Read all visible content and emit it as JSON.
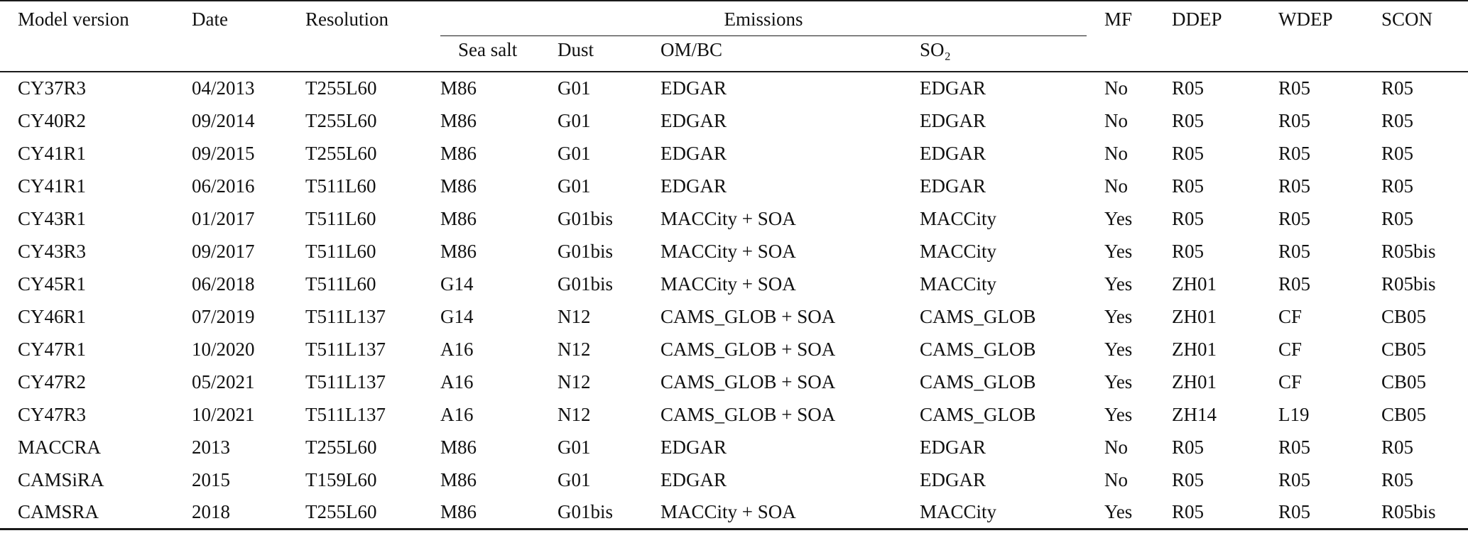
{
  "table": {
    "header": {
      "model_version": "Model version",
      "date": "Date",
      "resolution": "Resolution",
      "emissions_group": "Emissions",
      "sea_salt": "Sea salt",
      "dust": "Dust",
      "om_bc": "OM/BC",
      "so2": "SO₂",
      "mf": "MF",
      "ddep": "DDEP",
      "wdep": "WDEP",
      "scon": "SCON"
    },
    "rows": [
      [
        "CY37R3",
        "04/2013",
        "T255L60",
        "M86",
        "G01",
        "EDGAR",
        "EDGAR",
        "No",
        "R05",
        "R05",
        "R05"
      ],
      [
        "CY40R2",
        "09/2014",
        "T255L60",
        "M86",
        "G01",
        "EDGAR",
        "EDGAR",
        "No",
        "R05",
        "R05",
        "R05"
      ],
      [
        "CY41R1",
        "09/2015",
        "T255L60",
        "M86",
        "G01",
        "EDGAR",
        "EDGAR",
        "No",
        "R05",
        "R05",
        "R05"
      ],
      [
        "CY41R1",
        "06/2016",
        "T511L60",
        "M86",
        "G01",
        "EDGAR",
        "EDGAR",
        "No",
        "R05",
        "R05",
        "R05"
      ],
      [
        "CY43R1",
        "01/2017",
        "T511L60",
        "M86",
        "G01bis",
        "MACCity + SOA",
        "MACCity",
        "Yes",
        "R05",
        "R05",
        "R05"
      ],
      [
        "CY43R3",
        "09/2017",
        "T511L60",
        "M86",
        "G01bis",
        "MACCity + SOA",
        "MACCity",
        "Yes",
        "R05",
        "R05",
        "R05bis"
      ],
      [
        "CY45R1",
        "06/2018",
        "T511L60",
        "G14",
        "G01bis",
        "MACCity + SOA",
        "MACCity",
        "Yes",
        "ZH01",
        "R05",
        "R05bis"
      ],
      [
        "CY46R1",
        "07/2019",
        "T511L137",
        "G14",
        "N12",
        "CAMS_GLOB + SOA",
        "CAMS_GLOB",
        "Yes",
        "ZH01",
        "CF",
        "CB05"
      ],
      [
        "CY47R1",
        "10/2020",
        "T511L137",
        "A16",
        "N12",
        "CAMS_GLOB + SOA",
        "CAMS_GLOB",
        "Yes",
        "ZH01",
        "CF",
        "CB05"
      ],
      [
        "CY47R2",
        "05/2021",
        "T511L137",
        "A16",
        "N12",
        "CAMS_GLOB + SOA",
        "CAMS_GLOB",
        "Yes",
        "ZH01",
        "CF",
        "CB05"
      ],
      [
        "CY47R3",
        "10/2021",
        "T511L137",
        "A16",
        "N12",
        "CAMS_GLOB + SOA",
        "CAMS_GLOB",
        "Yes",
        "ZH14",
        "L19",
        "CB05"
      ],
      [
        "MACCRA",
        "2013",
        "T255L60",
        "M86",
        "G01",
        "EDGAR",
        "EDGAR",
        "No",
        "R05",
        "R05",
        "R05"
      ],
      [
        "CAMSiRA",
        "2015",
        "T159L60",
        "M86",
        "G01",
        "EDGAR",
        "EDGAR",
        "No",
        "R05",
        "R05",
        "R05"
      ],
      [
        "CAMSRA",
        "2018",
        "T255L60",
        "M86",
        "G01bis",
        "MACCity + SOA",
        "MACCity",
        "Yes",
        "R05",
        "R05",
        "R05bis"
      ]
    ],
    "colors": {
      "rule": "#1a1a1a",
      "text": "#111111",
      "background": "#ffffff"
    }
  }
}
